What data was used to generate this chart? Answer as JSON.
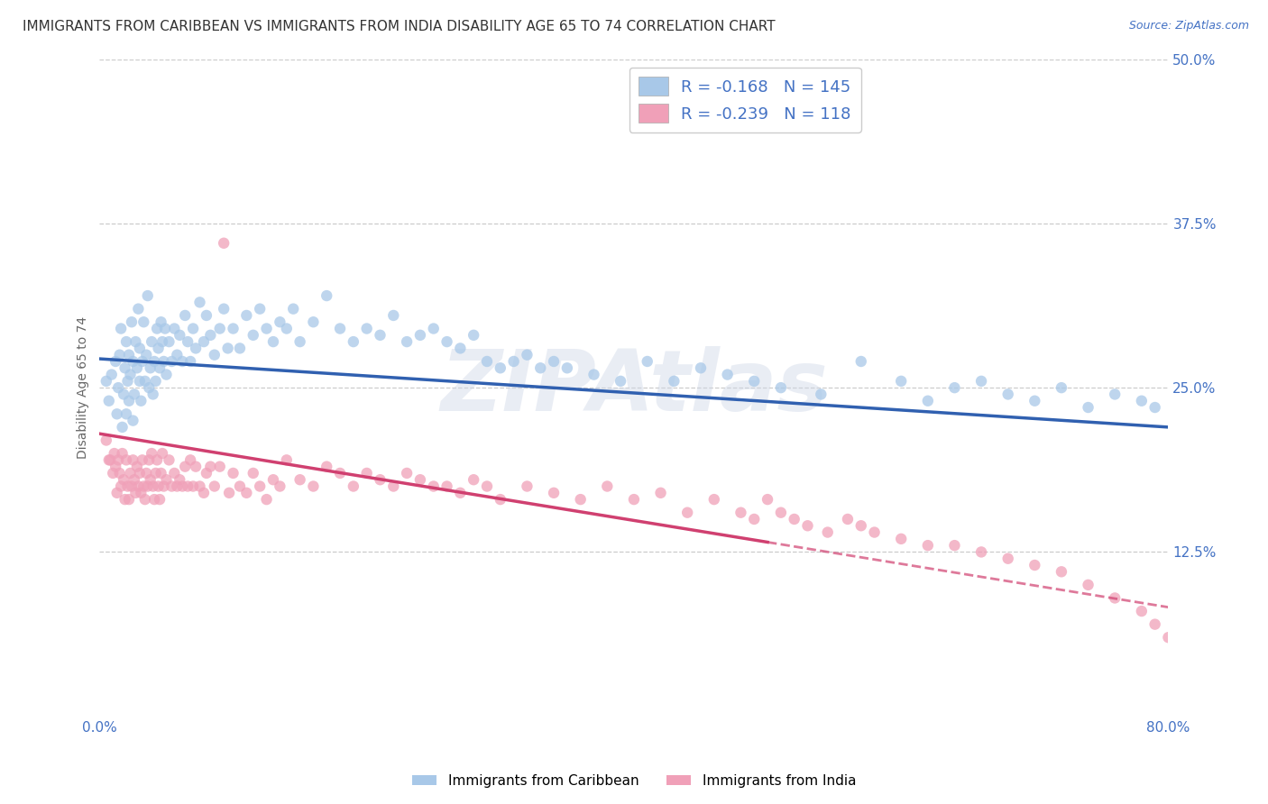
{
  "title": "IMMIGRANTS FROM CARIBBEAN VS IMMIGRANTS FROM INDIA DISABILITY AGE 65 TO 74 CORRELATION CHART",
  "source": "Source: ZipAtlas.com",
  "ylabel": "Disability Age 65 to 74",
  "xlim": [
    0.0,
    0.8
  ],
  "ylim": [
    0.0,
    0.5
  ],
  "xticks": [
    0.0,
    0.1,
    0.2,
    0.3,
    0.4,
    0.5,
    0.6,
    0.7,
    0.8
  ],
  "yticks": [
    0.0,
    0.125,
    0.25,
    0.375,
    0.5
  ],
  "title_color": "#333333",
  "tick_color": "#4472c4",
  "grid_color": "#cccccc",
  "background_color": "#ffffff",
  "watermark": "ZIPAtlas",
  "title_fontsize": 11,
  "label_fontsize": 10,
  "tick_fontsize": 11,
  "source_fontsize": 9,
  "caribbean": {
    "name": "Immigrants from Caribbean",
    "R": -0.168,
    "N": 145,
    "dot_color": "#a8c8e8",
    "line_color": "#3060b0",
    "line_style": "solid",
    "intercept": 0.272,
    "slope": -0.065,
    "x": [
      0.005,
      0.007,
      0.009,
      0.012,
      0.013,
      0.014,
      0.015,
      0.016,
      0.017,
      0.018,
      0.019,
      0.02,
      0.02,
      0.021,
      0.022,
      0.022,
      0.023,
      0.024,
      0.025,
      0.025,
      0.026,
      0.027,
      0.028,
      0.029,
      0.03,
      0.03,
      0.031,
      0.032,
      0.033,
      0.034,
      0.035,
      0.036,
      0.037,
      0.038,
      0.039,
      0.04,
      0.041,
      0.042,
      0.043,
      0.044,
      0.045,
      0.046,
      0.047,
      0.048,
      0.049,
      0.05,
      0.052,
      0.054,
      0.056,
      0.058,
      0.06,
      0.062,
      0.064,
      0.066,
      0.068,
      0.07,
      0.072,
      0.075,
      0.078,
      0.08,
      0.083,
      0.086,
      0.09,
      0.093,
      0.096,
      0.1,
      0.105,
      0.11,
      0.115,
      0.12,
      0.125,
      0.13,
      0.135,
      0.14,
      0.145,
      0.15,
      0.16,
      0.17,
      0.18,
      0.19,
      0.2,
      0.21,
      0.22,
      0.23,
      0.24,
      0.25,
      0.26,
      0.27,
      0.28,
      0.29,
      0.3,
      0.31,
      0.32,
      0.33,
      0.34,
      0.35,
      0.37,
      0.39,
      0.41,
      0.43,
      0.45,
      0.47,
      0.49,
      0.51,
      0.54,
      0.57,
      0.6,
      0.62,
      0.64,
      0.66,
      0.68,
      0.7,
      0.72,
      0.74,
      0.76,
      0.78,
      0.79
    ],
    "y": [
      0.255,
      0.24,
      0.26,
      0.27,
      0.23,
      0.25,
      0.275,
      0.295,
      0.22,
      0.245,
      0.265,
      0.23,
      0.285,
      0.255,
      0.24,
      0.275,
      0.26,
      0.3,
      0.225,
      0.27,
      0.245,
      0.285,
      0.265,
      0.31,
      0.255,
      0.28,
      0.24,
      0.27,
      0.3,
      0.255,
      0.275,
      0.32,
      0.25,
      0.265,
      0.285,
      0.245,
      0.27,
      0.255,
      0.295,
      0.28,
      0.265,
      0.3,
      0.285,
      0.27,
      0.295,
      0.26,
      0.285,
      0.27,
      0.295,
      0.275,
      0.29,
      0.27,
      0.305,
      0.285,
      0.27,
      0.295,
      0.28,
      0.315,
      0.285,
      0.305,
      0.29,
      0.275,
      0.295,
      0.31,
      0.28,
      0.295,
      0.28,
      0.305,
      0.29,
      0.31,
      0.295,
      0.285,
      0.3,
      0.295,
      0.31,
      0.285,
      0.3,
      0.32,
      0.295,
      0.285,
      0.295,
      0.29,
      0.305,
      0.285,
      0.29,
      0.295,
      0.285,
      0.28,
      0.29,
      0.27,
      0.265,
      0.27,
      0.275,
      0.265,
      0.27,
      0.265,
      0.26,
      0.255,
      0.27,
      0.255,
      0.265,
      0.26,
      0.255,
      0.25,
      0.245,
      0.27,
      0.255,
      0.24,
      0.25,
      0.255,
      0.245,
      0.24,
      0.25,
      0.235,
      0.245,
      0.24,
      0.235
    ]
  },
  "india": {
    "name": "Immigrants from India",
    "R": -0.239,
    "N": 118,
    "dot_color": "#f0a0b8",
    "line_color": "#d04070",
    "line_style_solid_end": 0.5,
    "intercept": 0.215,
    "slope": -0.165,
    "x": [
      0.005,
      0.007,
      0.008,
      0.01,
      0.011,
      0.012,
      0.013,
      0.014,
      0.015,
      0.016,
      0.017,
      0.018,
      0.019,
      0.02,
      0.021,
      0.022,
      0.023,
      0.024,
      0.025,
      0.026,
      0.027,
      0.028,
      0.029,
      0.03,
      0.031,
      0.032,
      0.033,
      0.034,
      0.035,
      0.036,
      0.037,
      0.038,
      0.039,
      0.04,
      0.041,
      0.042,
      0.043,
      0.044,
      0.045,
      0.046,
      0.047,
      0.048,
      0.05,
      0.052,
      0.054,
      0.056,
      0.058,
      0.06,
      0.062,
      0.064,
      0.066,
      0.068,
      0.07,
      0.072,
      0.075,
      0.078,
      0.08,
      0.083,
      0.086,
      0.09,
      0.093,
      0.097,
      0.1,
      0.105,
      0.11,
      0.115,
      0.12,
      0.125,
      0.13,
      0.135,
      0.14,
      0.15,
      0.16,
      0.17,
      0.18,
      0.19,
      0.2,
      0.21,
      0.22,
      0.23,
      0.24,
      0.25,
      0.26,
      0.27,
      0.28,
      0.29,
      0.3,
      0.32,
      0.34,
      0.36,
      0.38,
      0.4,
      0.42,
      0.44,
      0.46,
      0.48,
      0.49,
      0.5,
      0.51,
      0.52,
      0.53,
      0.545,
      0.56,
      0.57,
      0.58,
      0.6,
      0.62,
      0.64,
      0.66,
      0.68,
      0.7,
      0.72,
      0.74,
      0.76,
      0.78,
      0.79,
      0.8
    ],
    "y": [
      0.21,
      0.195,
      0.195,
      0.185,
      0.2,
      0.19,
      0.17,
      0.195,
      0.185,
      0.175,
      0.2,
      0.18,
      0.165,
      0.195,
      0.175,
      0.165,
      0.185,
      0.175,
      0.195,
      0.18,
      0.17,
      0.19,
      0.175,
      0.185,
      0.17,
      0.195,
      0.175,
      0.165,
      0.185,
      0.175,
      0.195,
      0.18,
      0.2,
      0.175,
      0.165,
      0.185,
      0.195,
      0.175,
      0.165,
      0.185,
      0.2,
      0.175,
      0.18,
      0.195,
      0.175,
      0.185,
      0.175,
      0.18,
      0.175,
      0.19,
      0.175,
      0.195,
      0.175,
      0.19,
      0.175,
      0.17,
      0.185,
      0.19,
      0.175,
      0.19,
      0.36,
      0.17,
      0.185,
      0.175,
      0.17,
      0.185,
      0.175,
      0.165,
      0.18,
      0.175,
      0.195,
      0.18,
      0.175,
      0.19,
      0.185,
      0.175,
      0.185,
      0.18,
      0.175,
      0.185,
      0.18,
      0.175,
      0.175,
      0.17,
      0.18,
      0.175,
      0.165,
      0.175,
      0.17,
      0.165,
      0.175,
      0.165,
      0.17,
      0.155,
      0.165,
      0.155,
      0.15,
      0.165,
      0.155,
      0.15,
      0.145,
      0.14,
      0.15,
      0.145,
      0.14,
      0.135,
      0.13,
      0.13,
      0.125,
      0.12,
      0.115,
      0.11,
      0.1,
      0.09,
      0.08,
      0.07,
      0.06
    ]
  }
}
